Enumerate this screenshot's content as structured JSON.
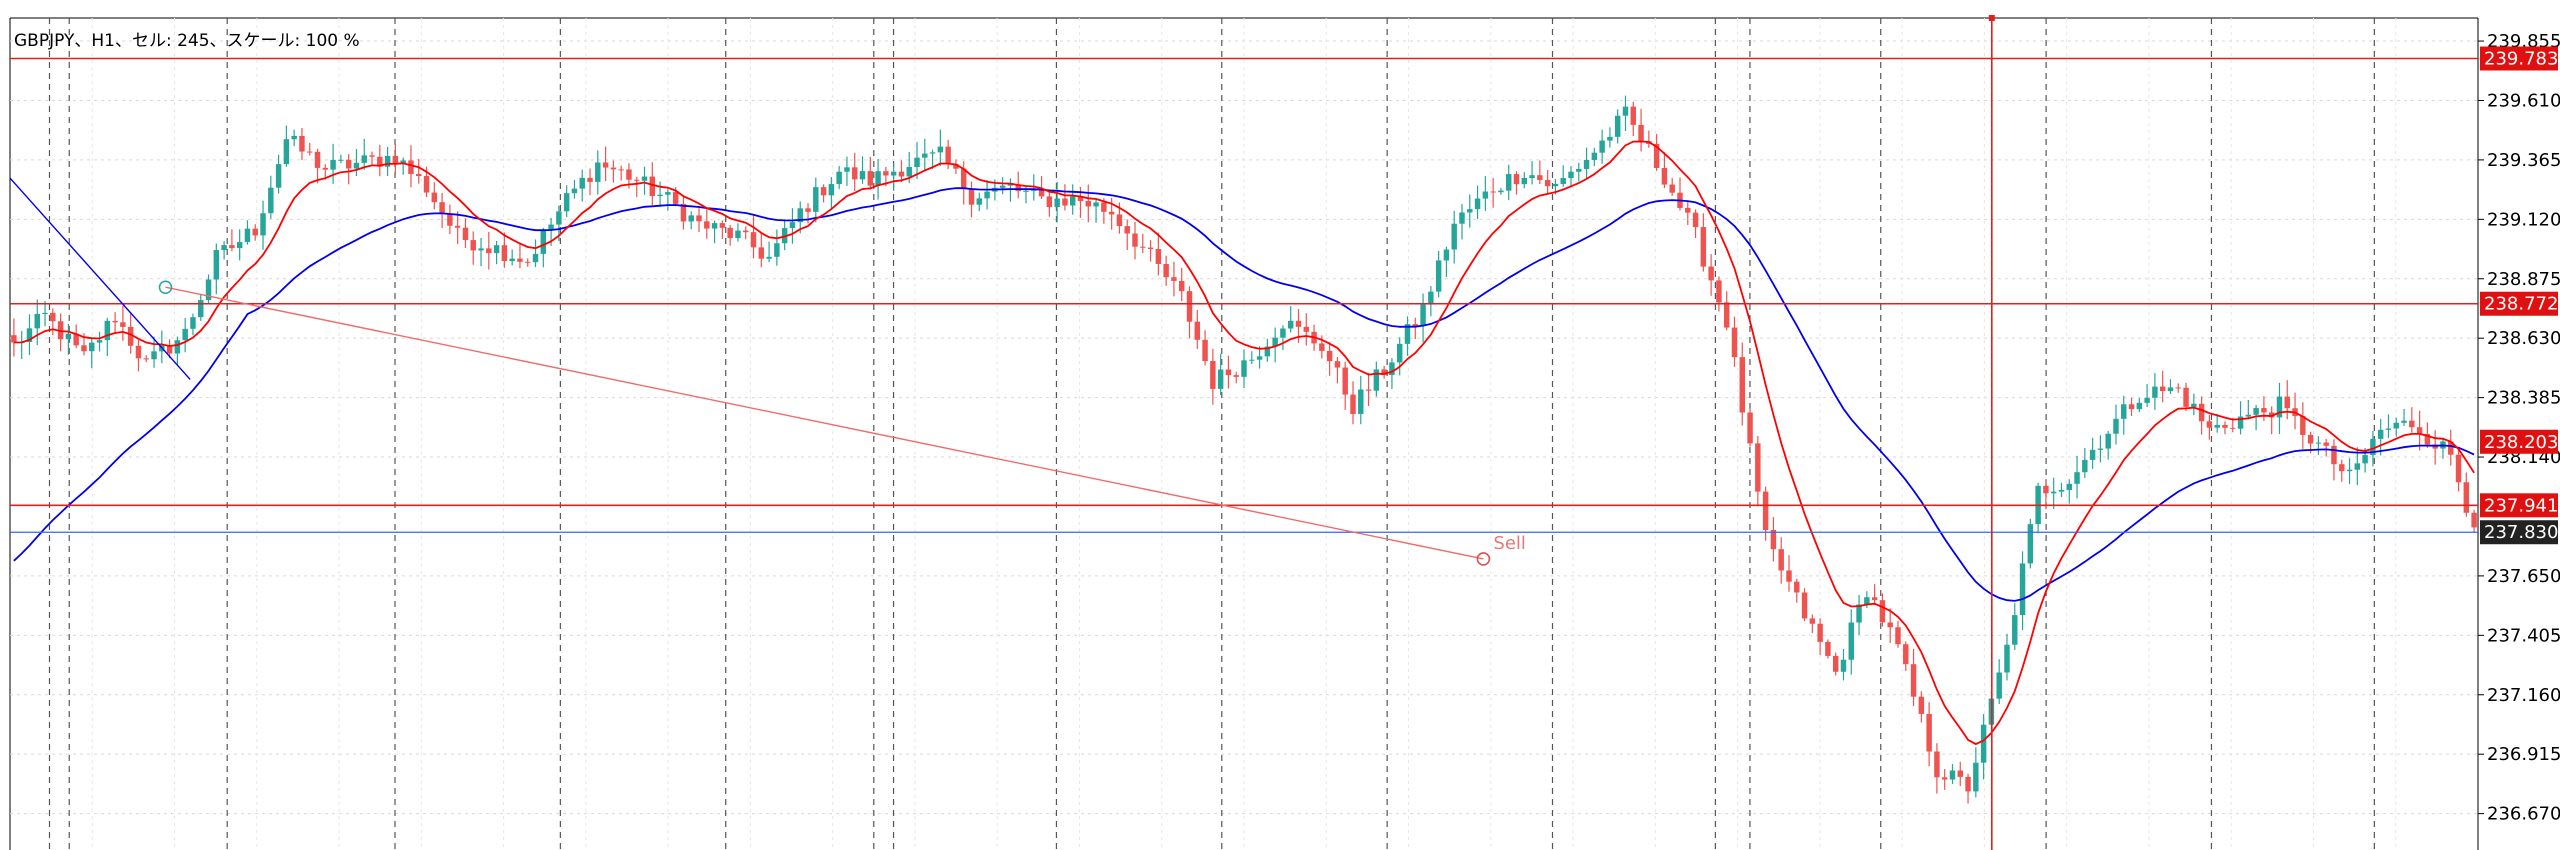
{
  "header": {
    "info_label": "GBPJPY、H1、セル: 245、スケール: 100 %"
  },
  "colors": {
    "bull": "#26a69a",
    "bear": "#ef5350",
    "fast_ma": "#ff0000",
    "slow_ma": "#0000ee",
    "hline": "#e02020",
    "bid_line": "#3366ff",
    "grid": "#d9d9d9",
    "vline": "#555555"
  },
  "chart_data": {
    "type": "candlestick",
    "symbol": "GBPJPY",
    "timeframe": "H1",
    "ylim": [
      236.52,
      239.95
    ],
    "y_ticks": [
      "239.855",
      "239.610",
      "239.365",
      "239.120",
      "238.875",
      "238.630",
      "238.385",
      "238.140",
      "237.650",
      "237.405",
      "237.160",
      "236.915",
      "236.670"
    ],
    "price_tags": [
      {
        "value": "239.783",
        "price": 239.783,
        "style": "red"
      },
      {
        "value": "238.772",
        "price": 238.772,
        "style": "red"
      },
      {
        "value": "238.203",
        "price": 238.203,
        "style": "red"
      },
      {
        "value": "237.941",
        "price": 237.941,
        "style": "red"
      },
      {
        "value": "237.830",
        "price": 237.83,
        "style": "bid"
      }
    ],
    "horizontal_lines": [
      239.783,
      238.772,
      237.941
    ],
    "bid_line": 237.83,
    "trendlines": [
      {
        "color": "red",
        "from": [
          0.063,
          238.84
        ],
        "to": [
          0.597,
          237.72
        ]
      },
      {
        "color": "blue",
        "from": [
          0.0,
          239.29
        ],
        "to": [
          0.073,
          238.46
        ]
      }
    ],
    "annotation": {
      "text": "Sell",
      "price": 237.72,
      "x_frac": 0.597
    },
    "waypoints": [
      [
        0,
        238.6
      ],
      [
        4,
        238.72
      ],
      [
        9,
        238.55
      ],
      [
        13,
        238.72
      ],
      [
        17,
        238.52
      ],
      [
        22,
        238.65
      ],
      [
        26,
        238.96
      ],
      [
        31,
        239.08
      ],
      [
        35,
        239.45
      ],
      [
        40,
        239.33
      ],
      [
        44,
        239.35
      ],
      [
        49,
        239.38
      ],
      [
        53,
        239.25
      ],
      [
        57,
        239.05
      ],
      [
        62,
        239.0
      ],
      [
        66,
        238.95
      ],
      [
        71,
        239.2
      ],
      [
        75,
        239.35
      ],
      [
        79,
        239.3
      ],
      [
        84,
        239.2
      ],
      [
        88,
        239.1
      ],
      [
        93,
        239.05
      ],
      [
        97,
        238.96
      ],
      [
        101,
        239.15
      ],
      [
        106,
        239.32
      ],
      [
        110,
        239.28
      ],
      [
        115,
        239.35
      ],
      [
        119,
        239.38
      ],
      [
        123,
        239.22
      ],
      [
        128,
        239.25
      ],
      [
        132,
        239.2
      ],
      [
        137,
        239.2
      ],
      [
        141,
        239.15
      ],
      [
        145,
        239.0
      ],
      [
        150,
        238.8
      ],
      [
        154,
        238.45
      ],
      [
        159,
        238.55
      ],
      [
        163,
        238.7
      ],
      [
        168,
        238.6
      ],
      [
        172,
        238.35
      ],
      [
        176,
        238.5
      ],
      [
        181,
        238.75
      ],
      [
        185,
        239.1
      ],
      [
        190,
        239.25
      ],
      [
        194,
        239.32
      ],
      [
        198,
        239.25
      ],
      [
        203,
        239.4
      ],
      [
        207,
        239.55
      ],
      [
        212,
        239.3
      ],
      [
        216,
        239.05
      ],
      [
        220,
        238.7
      ],
      [
        225,
        237.8
      ],
      [
        229,
        237.55
      ],
      [
        234,
        237.25
      ],
      [
        238,
        237.6
      ],
      [
        242,
        237.35
      ],
      [
        247,
        236.85
      ],
      [
        251,
        236.78
      ],
      [
        256,
        237.35
      ],
      [
        260,
        238.0
      ],
      [
        264,
        238.05
      ],
      [
        269,
        238.25
      ],
      [
        273,
        238.4
      ],
      [
        278,
        238.42
      ],
      [
        282,
        238.25
      ],
      [
        286,
        238.3
      ],
      [
        291,
        238.35
      ],
      [
        295,
        238.22
      ],
      [
        300,
        238.05
      ],
      [
        304,
        238.25
      ],
      [
        308,
        238.28
      ],
      [
        313,
        238.15
      ],
      [
        316,
        237.85
      ]
    ],
    "vertical_dashed_frac": [
      0.016,
      0.024,
      0.088,
      0.156,
      0.223,
      0.29,
      0.35,
      0.358,
      0.424,
      0.491,
      0.558,
      0.625,
      0.691,
      0.705,
      0.758,
      0.825,
      0.892,
      0.958
    ],
    "cursor_line_frac": 0.803
  }
}
